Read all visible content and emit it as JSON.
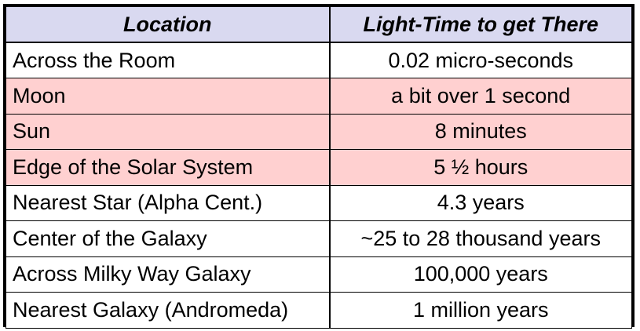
{
  "colors": {
    "header_bg": "#d9d9f0",
    "row_bg": "#ffffff",
    "highlight_bg": "#ffd0d0",
    "border": "#000000"
  },
  "table": {
    "headers": [
      "Location",
      "Light-Time to get There"
    ],
    "rows": [
      {
        "location": "Across the Room",
        "time": "0.02 micro-seconds",
        "highlight": false
      },
      {
        "location": "Moon",
        "time": "a bit over 1 second",
        "highlight": true
      },
      {
        "location": "Sun",
        "time": "8 minutes",
        "highlight": true
      },
      {
        "location": "Edge of the Solar System",
        "time": "5 ½ hours",
        "highlight": true
      },
      {
        "location": "Nearest Star (Alpha Cent.)",
        "time": "4.3 years",
        "highlight": false
      },
      {
        "location": "Center of the Galaxy",
        "time": "~25 to 28 thousand years",
        "highlight": false
      },
      {
        "location": "Across Milky Way Galaxy",
        "time": "100,000 years",
        "highlight": false
      },
      {
        "location": "Nearest Galaxy (Andromeda)",
        "time": "1 million years",
        "highlight": false
      }
    ]
  }
}
